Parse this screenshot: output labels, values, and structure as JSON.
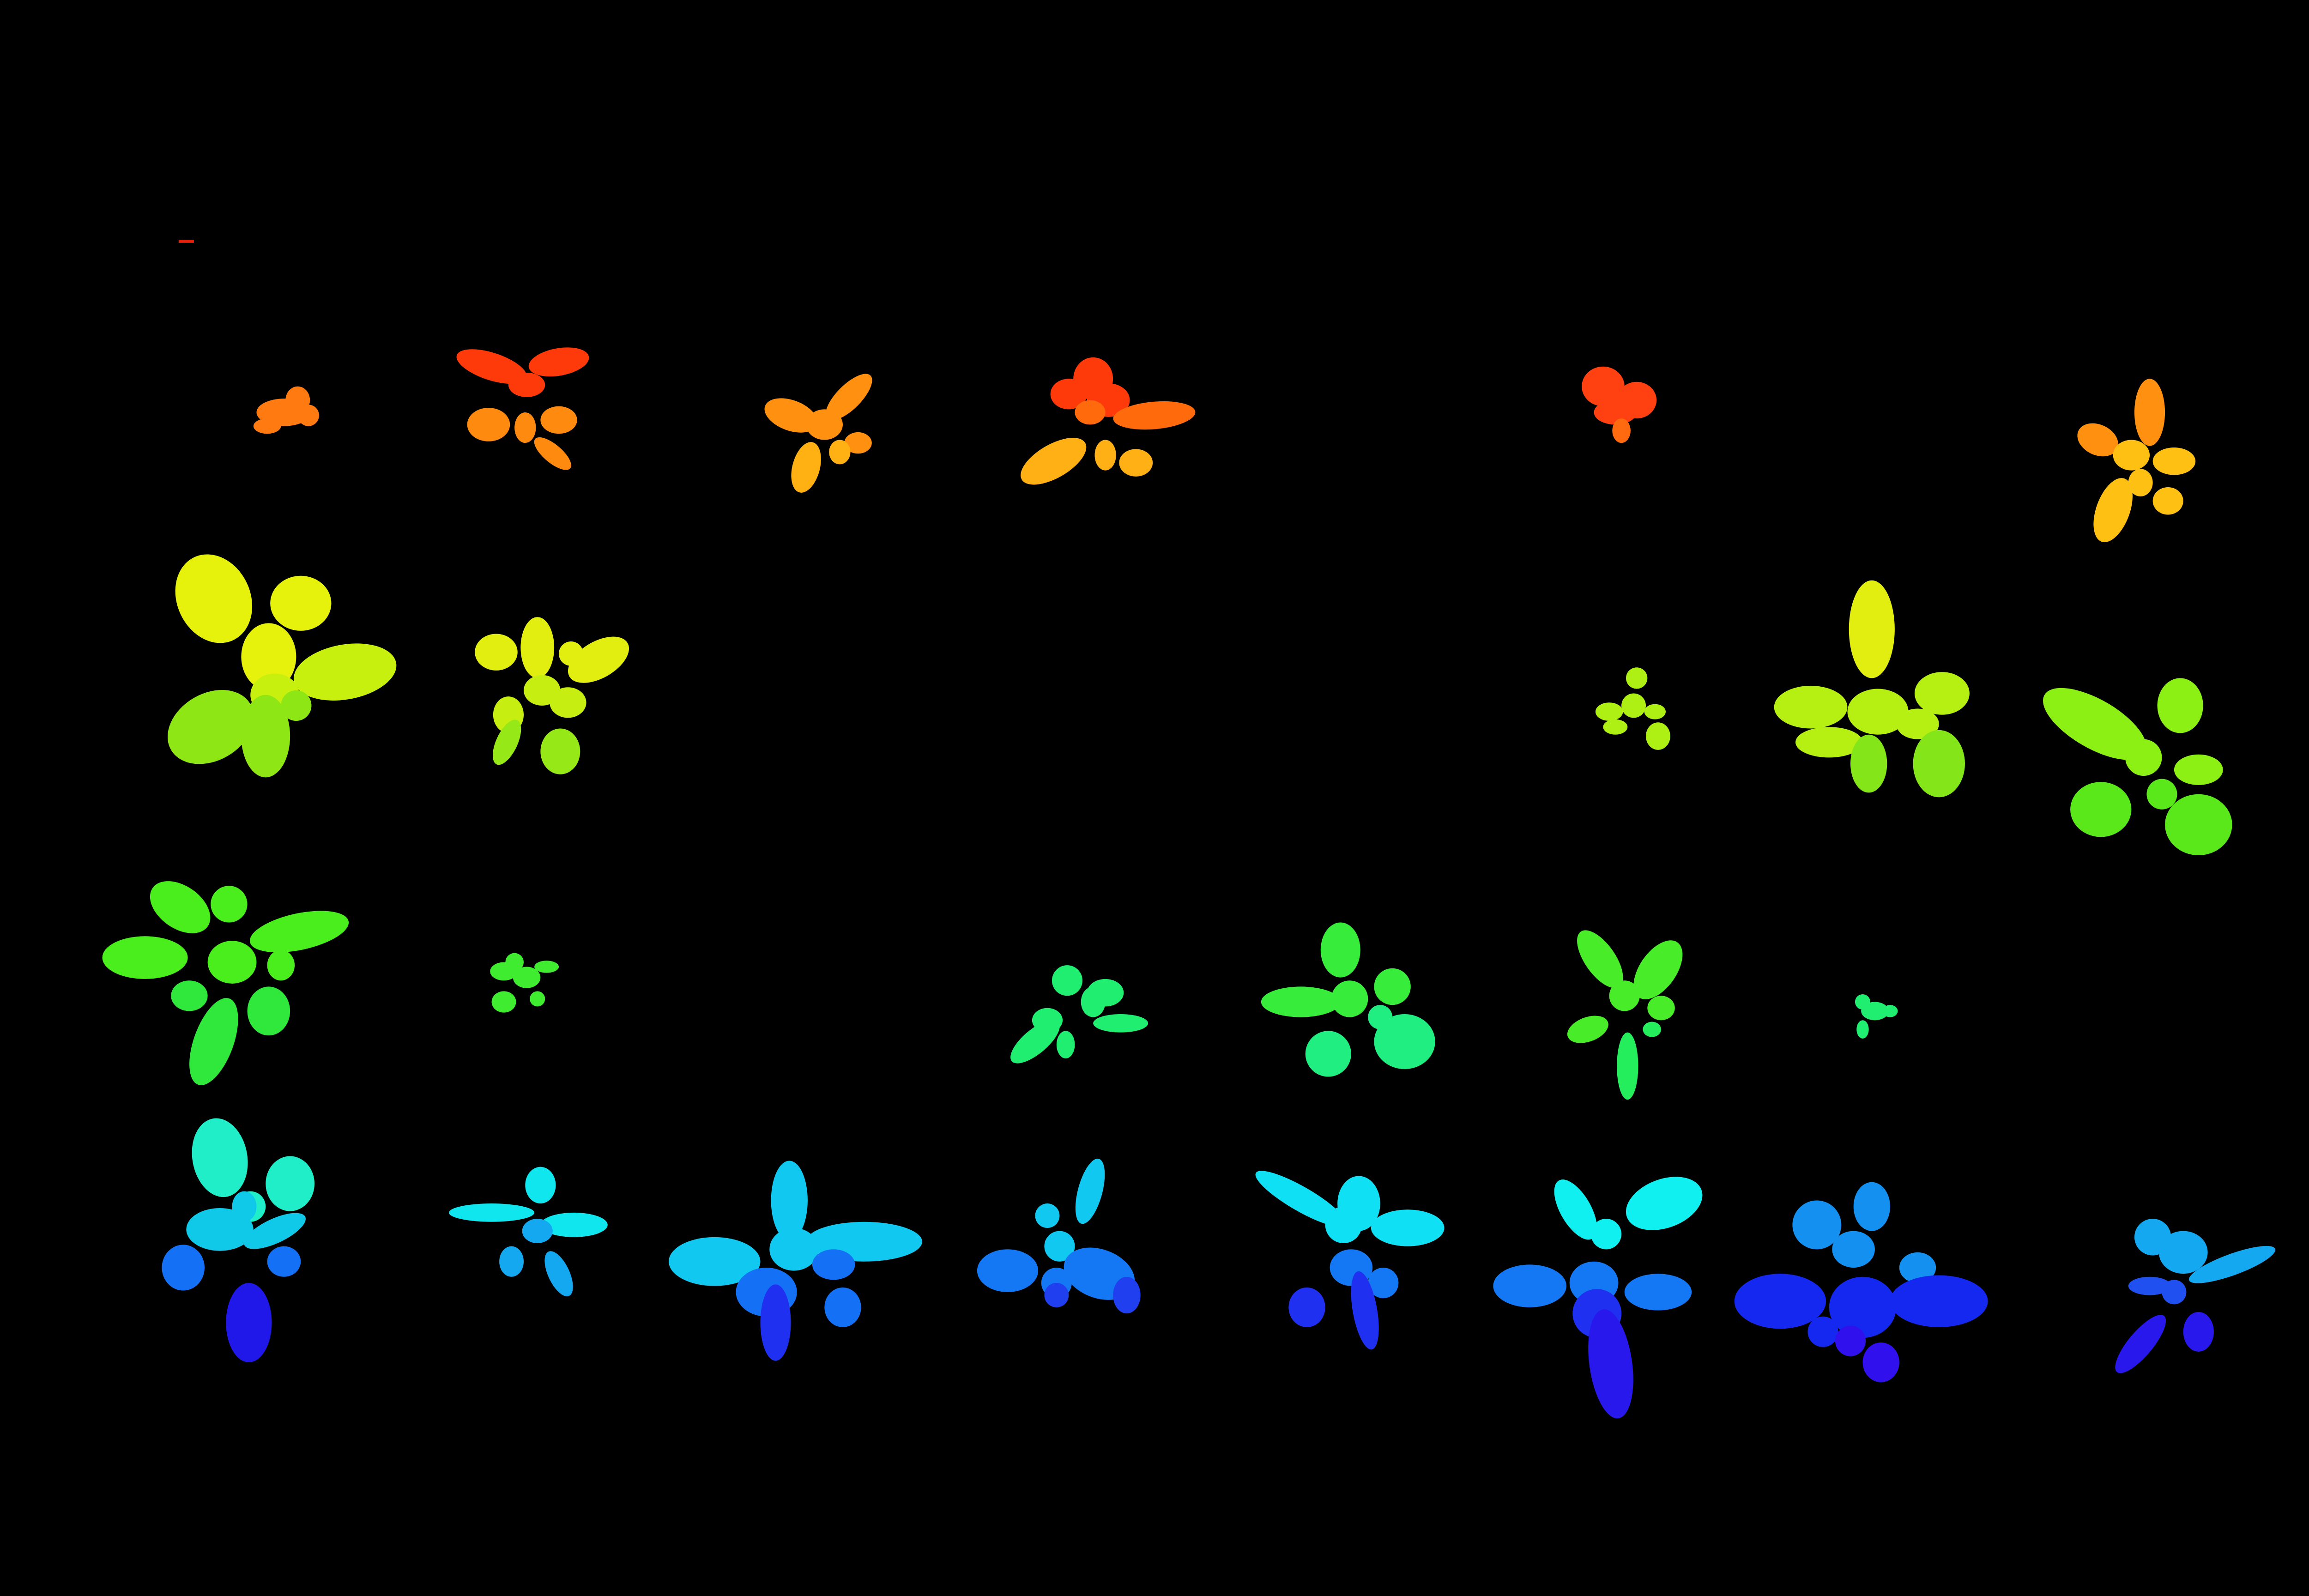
{
  "image": {
    "background": "#000000",
    "description_kind": "segmentation-mask",
    "plants": [
      {
        "id": 1,
        "color": "#ff7a10"
      },
      {
        "id": 2,
        "color": "#ff3a0a"
      },
      {
        "id": 3,
        "color": "#ff9010"
      },
      {
        "id": 4,
        "color": "#ff5a0c"
      },
      {
        "id": 5,
        "color": "#ff4010"
      },
      {
        "id": 6,
        "color": "#ffb814"
      },
      {
        "id": 7,
        "color": "#e6f20c"
      },
      {
        "id": 8,
        "color": "#e2ee10"
      },
      {
        "id": 9,
        "color": "#aef014"
      },
      {
        "id": 10,
        "color": "#b6f012"
      },
      {
        "id": 11,
        "color": "#8cf014"
      },
      {
        "id": 12,
        "color": "#4aee1c"
      },
      {
        "id": 13,
        "color": "#40ec30"
      },
      {
        "id": 14,
        "color": "#20ee70"
      },
      {
        "id": 15,
        "color": "#20ee60"
      },
      {
        "id": 16,
        "color": "#38ec3c"
      },
      {
        "id": 17,
        "color": "#20ee70"
      },
      {
        "id": 18,
        "color": "#20eec8"
      },
      {
        "id": 19,
        "color": "#10e6ee"
      },
      {
        "id": 20,
        "color": "#10c8f0"
      },
      {
        "id": 21,
        "color": "#1478f4"
      },
      {
        "id": 22,
        "color": "#10e0f4"
      },
      {
        "id": 23,
        "color": "#10f0f0"
      },
      {
        "id": 24,
        "color": "#1490f0"
      },
      {
        "id": 25,
        "color": "#2070f2"
      }
    ]
  }
}
